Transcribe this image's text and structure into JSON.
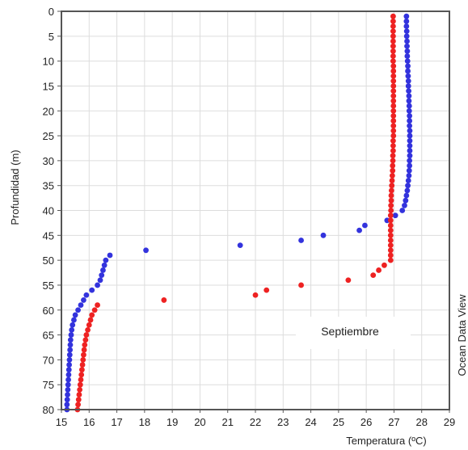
{
  "chart_data": {
    "type": "scatter",
    "title": "",
    "xlabel": "Temperatura (ºC)",
    "ylabel": "Profundidad (m)",
    "xlim": [
      15,
      29
    ],
    "ylim": [
      0,
      80
    ],
    "y_inverted": true,
    "x_ticks": [
      "15",
      "16",
      "17",
      "18",
      "19",
      "20",
      "21",
      "22",
      "23",
      "24",
      "25",
      "26",
      "27",
      "28",
      "29"
    ],
    "y_ticks": [
      "0",
      "5",
      "10",
      "15",
      "20",
      "25",
      "30",
      "35",
      "40",
      "45",
      "50",
      "55",
      "60",
      "65",
      "70",
      "75",
      "80"
    ],
    "grid": true,
    "legend_text": "Septiembre",
    "legend_position": "lower-right",
    "watermark": "Ocean Data View",
    "series": [
      {
        "color": "#3333dd",
        "points": [
          [
            27.45,
            1
          ],
          [
            27.45,
            2
          ],
          [
            27.45,
            3
          ],
          [
            27.46,
            4
          ],
          [
            27.46,
            5
          ],
          [
            27.47,
            6
          ],
          [
            27.47,
            7
          ],
          [
            27.48,
            8
          ],
          [
            27.48,
            9
          ],
          [
            27.49,
            10
          ],
          [
            27.5,
            11
          ],
          [
            27.5,
            12
          ],
          [
            27.51,
            13
          ],
          [
            27.52,
            14
          ],
          [
            27.52,
            15
          ],
          [
            27.53,
            16
          ],
          [
            27.54,
            17
          ],
          [
            27.54,
            18
          ],
          [
            27.55,
            19
          ],
          [
            27.55,
            20
          ],
          [
            27.56,
            21
          ],
          [
            27.56,
            22
          ],
          [
            27.56,
            23
          ],
          [
            27.57,
            24
          ],
          [
            27.57,
            25
          ],
          [
            27.57,
            26
          ],
          [
            27.57,
            27
          ],
          [
            27.57,
            28
          ],
          [
            27.57,
            29
          ],
          [
            27.56,
            30
          ],
          [
            27.56,
            31
          ],
          [
            27.55,
            32
          ],
          [
            27.54,
            33
          ],
          [
            27.52,
            34
          ],
          [
            27.5,
            35
          ],
          [
            27.48,
            36
          ],
          [
            27.45,
            37
          ],
          [
            27.42,
            38
          ],
          [
            27.38,
            39
          ],
          [
            27.3,
            40
          ],
          [
            27.05,
            41
          ],
          [
            26.75,
            42
          ],
          [
            25.95,
            43
          ],
          [
            25.75,
            44
          ],
          [
            24.45,
            45
          ],
          [
            23.65,
            46
          ],
          [
            21.45,
            47
          ],
          [
            18.05,
            48
          ],
          [
            16.75,
            49
          ],
          [
            16.6,
            50
          ],
          [
            16.55,
            51
          ],
          [
            16.5,
            52
          ],
          [
            16.45,
            53
          ],
          [
            16.4,
            54
          ],
          [
            16.3,
            55
          ],
          [
            16.1,
            56
          ],
          [
            15.9,
            57
          ],
          [
            15.8,
            58
          ],
          [
            15.7,
            59
          ],
          [
            15.6,
            60
          ],
          [
            15.5,
            61
          ],
          [
            15.45,
            62
          ],
          [
            15.4,
            63
          ],
          [
            15.37,
            64
          ],
          [
            15.35,
            65
          ],
          [
            15.33,
            66
          ],
          [
            15.32,
            67
          ],
          [
            15.31,
            68
          ],
          [
            15.3,
            69
          ],
          [
            15.29,
            70
          ],
          [
            15.28,
            71
          ],
          [
            15.27,
            72
          ],
          [
            15.26,
            73
          ],
          [
            15.25,
            74
          ],
          [
            15.24,
            75
          ],
          [
            15.23,
            76
          ],
          [
            15.22,
            77
          ],
          [
            15.21,
            78
          ],
          [
            15.2,
            79
          ],
          [
            15.2,
            80
          ]
        ]
      },
      {
        "color": "#ee2222",
        "points": [
          [
            26.97,
            1
          ],
          [
            26.97,
            2
          ],
          [
            26.97,
            3
          ],
          [
            26.97,
            4
          ],
          [
            26.97,
            5
          ],
          [
            26.97,
            6
          ],
          [
            26.97,
            7
          ],
          [
            26.97,
            8
          ],
          [
            26.97,
            9
          ],
          [
            26.97,
            10
          ],
          [
            26.98,
            11
          ],
          [
            26.98,
            12
          ],
          [
            26.98,
            13
          ],
          [
            26.98,
            14
          ],
          [
            26.98,
            15
          ],
          [
            26.98,
            16
          ],
          [
            26.98,
            17
          ],
          [
            26.98,
            18
          ],
          [
            26.98,
            19
          ],
          [
            26.98,
            20
          ],
          [
            26.98,
            21
          ],
          [
            26.98,
            22
          ],
          [
            26.98,
            23
          ],
          [
            26.98,
            24
          ],
          [
            26.98,
            25
          ],
          [
            26.97,
            26
          ],
          [
            26.97,
            27
          ],
          [
            26.97,
            28
          ],
          [
            26.96,
            29
          ],
          [
            26.96,
            30
          ],
          [
            26.95,
            31
          ],
          [
            26.95,
            32
          ],
          [
            26.94,
            33
          ],
          [
            26.93,
            34
          ],
          [
            26.92,
            35
          ],
          [
            26.91,
            36
          ],
          [
            26.9,
            37
          ],
          [
            26.9,
            38
          ],
          [
            26.89,
            39
          ],
          [
            26.89,
            40
          ],
          [
            26.88,
            41
          ],
          [
            26.88,
            42
          ],
          [
            26.88,
            43
          ],
          [
            26.88,
            44
          ],
          [
            26.88,
            45
          ],
          [
            26.88,
            46
          ],
          [
            26.88,
            47
          ],
          [
            26.88,
            48
          ],
          [
            26.88,
            49
          ],
          [
            26.88,
            50
          ],
          [
            26.65,
            51
          ],
          [
            26.45,
            52
          ],
          [
            26.25,
            53
          ],
          [
            25.35,
            54
          ],
          [
            23.65,
            55
          ],
          [
            22.4,
            56
          ],
          [
            22.0,
            57
          ],
          [
            18.7,
            58
          ],
          [
            16.3,
            59
          ],
          [
            16.2,
            60
          ],
          [
            16.1,
            61
          ],
          [
            16.05,
            62
          ],
          [
            16.0,
            63
          ],
          [
            15.95,
            64
          ],
          [
            15.9,
            65
          ],
          [
            15.87,
            66
          ],
          [
            15.84,
            67
          ],
          [
            15.82,
            68
          ],
          [
            15.8,
            69
          ],
          [
            15.78,
            70
          ],
          [
            15.76,
            71
          ],
          [
            15.74,
            72
          ],
          [
            15.72,
            73
          ],
          [
            15.7,
            74
          ],
          [
            15.68,
            75
          ],
          [
            15.66,
            76
          ],
          [
            15.64,
            77
          ],
          [
            15.62,
            78
          ],
          [
            15.6,
            79
          ],
          [
            15.58,
            80
          ]
        ]
      }
    ]
  }
}
